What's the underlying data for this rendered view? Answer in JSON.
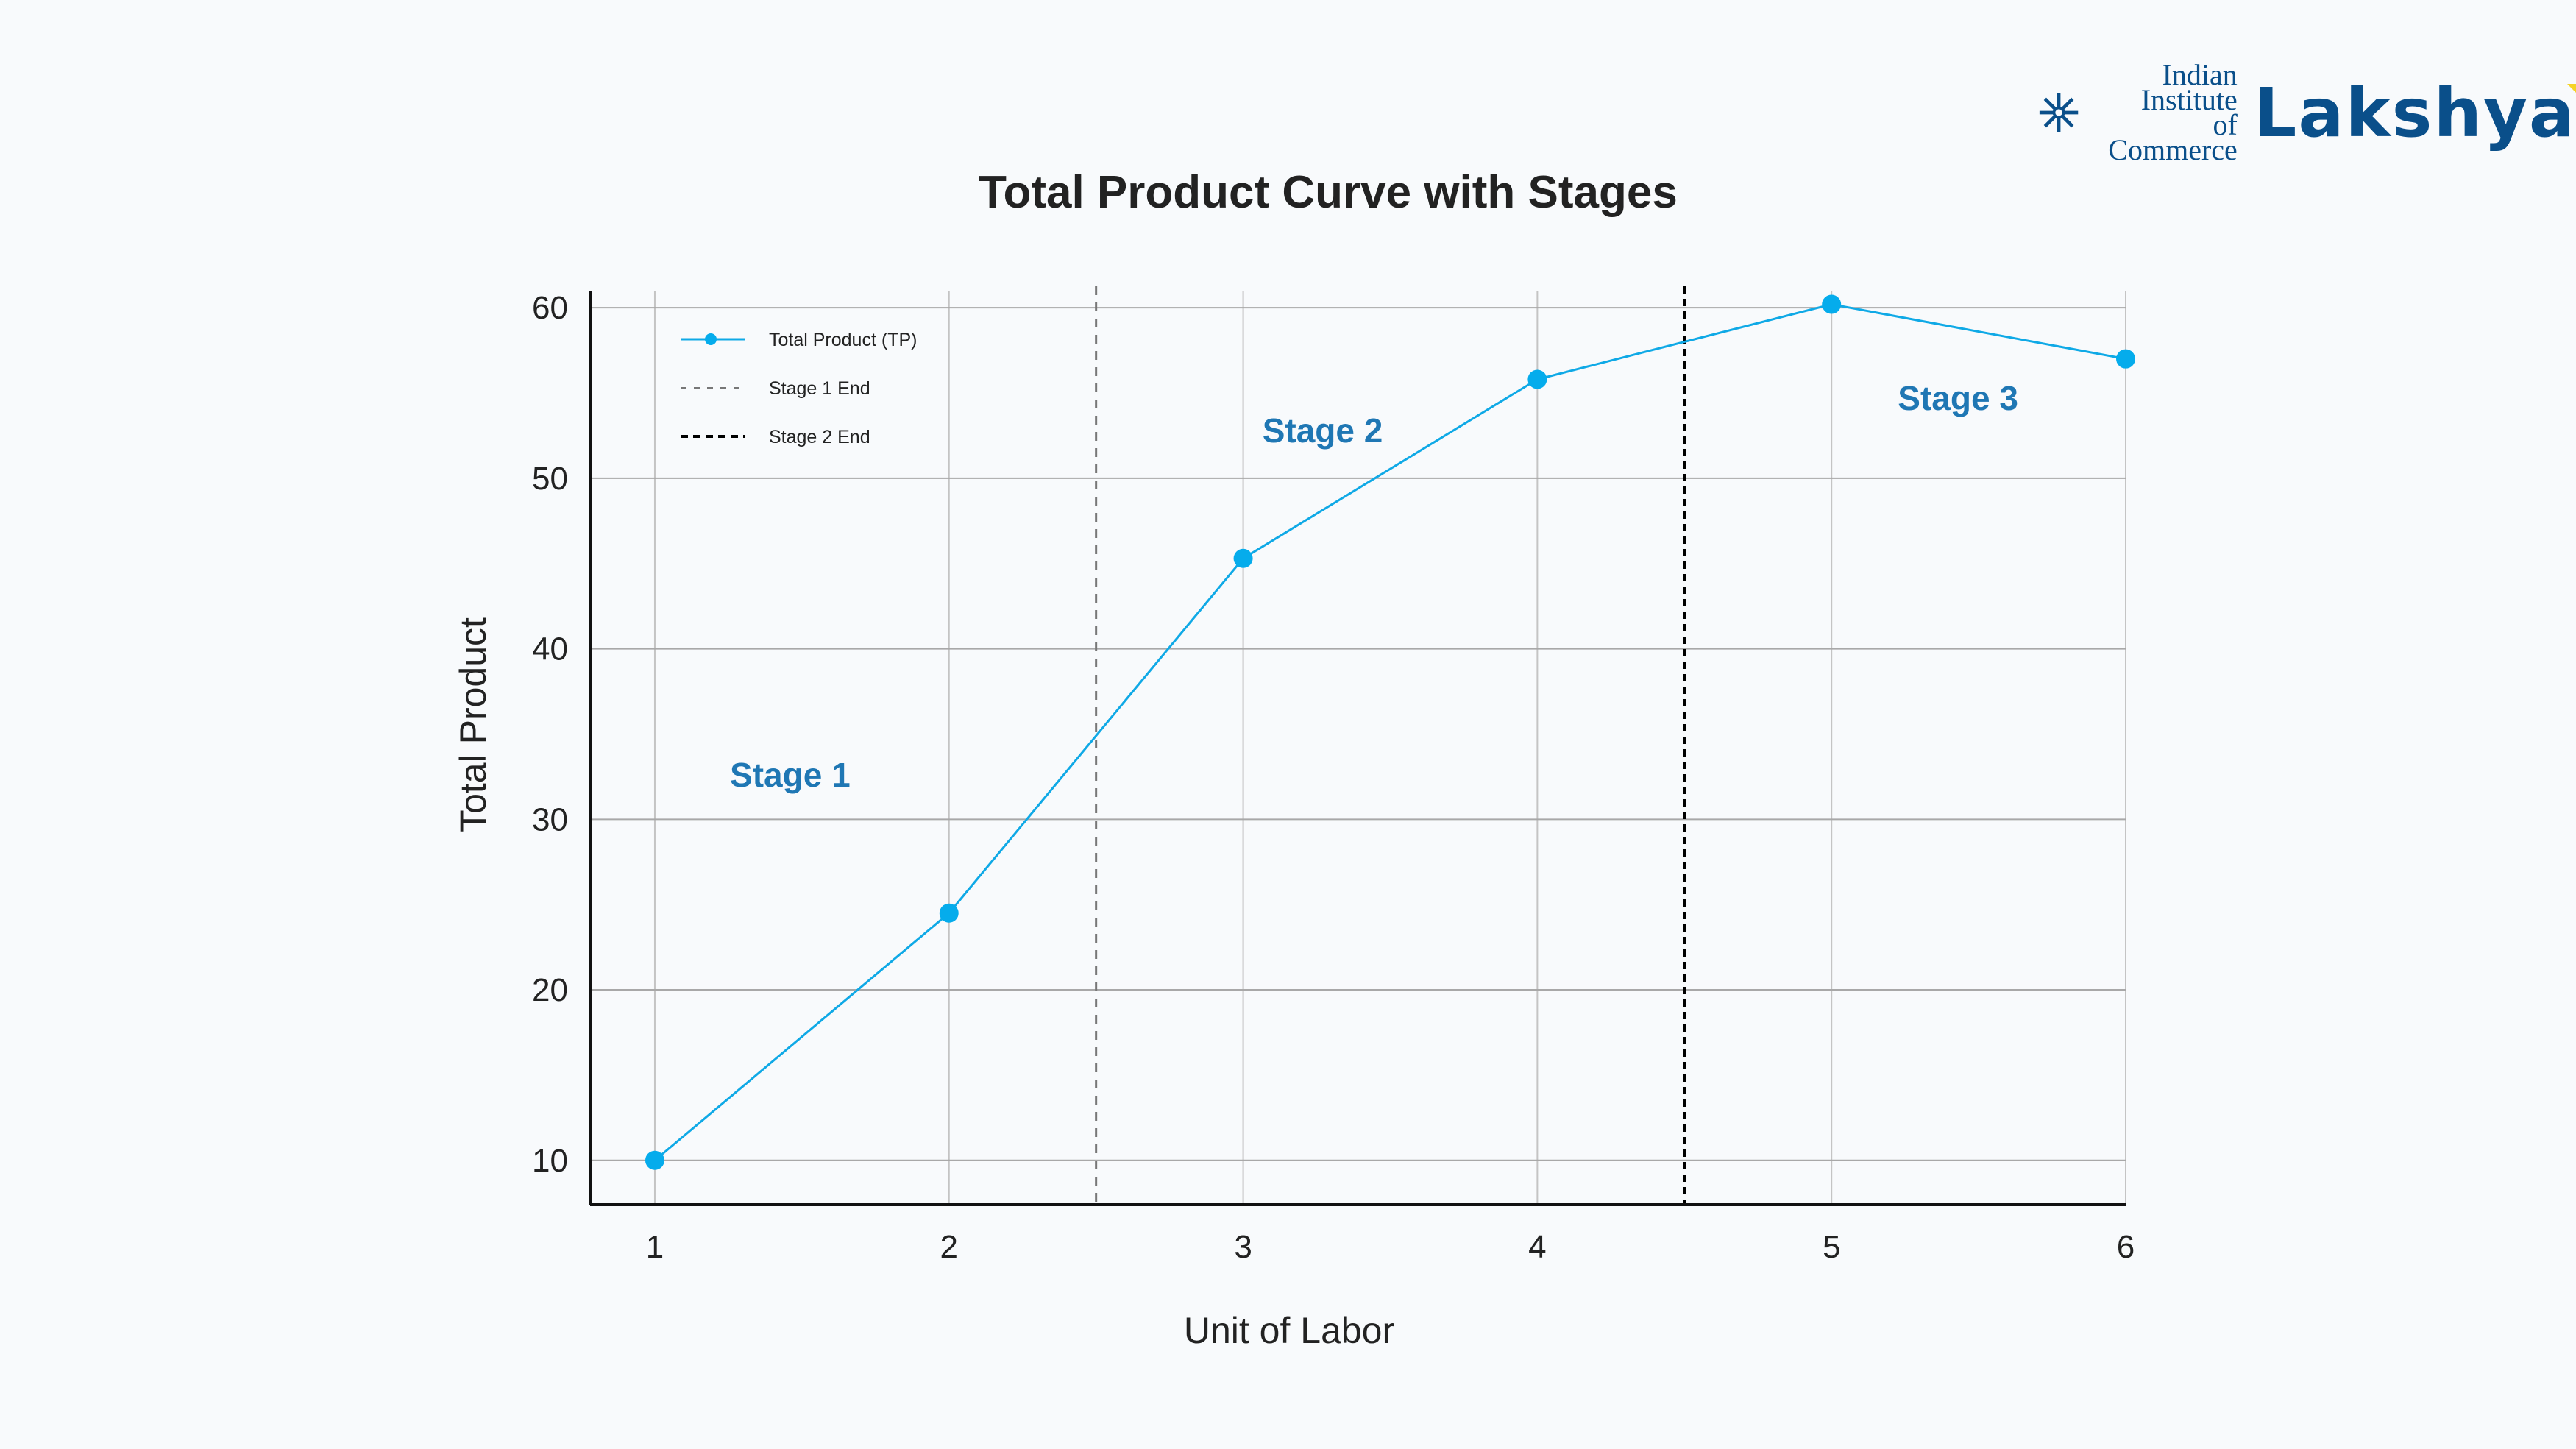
{
  "logo": {
    "line1": "Indian",
    "line2": "Institute",
    "line3": "of Commerce",
    "brand": "Lakshya",
    "icon": "snowflake-icon"
  },
  "chart_data": {
    "type": "line",
    "title": "Total Product Curve with Stages",
    "xlabel": "Unit of Labor",
    "ylabel": "Total Product",
    "x": [
      1,
      2,
      3,
      4,
      5,
      6
    ],
    "series": [
      {
        "name": "Total Product (TP)",
        "values": [
          10,
          24.5,
          45.3,
          55.8,
          60.2,
          57
        ],
        "color": "#0fa9e6"
      }
    ],
    "xlim": [
      0.78,
      6
    ],
    "ylim": [
      7.4,
      61
    ],
    "xticks": [
      "1",
      "2",
      "3",
      "4",
      "5",
      "6"
    ],
    "yticks": [
      "10",
      "20",
      "30",
      "40",
      "50",
      "60"
    ],
    "grid": true,
    "legend_position": "top-left",
    "vlines": [
      {
        "name": "Stage 1 End",
        "x": 2.5,
        "color": "#777777",
        "style": "dashed"
      },
      {
        "name": "Stage 2 End",
        "x": 4.5,
        "color": "#000000",
        "style": "dashed"
      }
    ],
    "annotations": [
      {
        "text": "Stage 1",
        "x": 1.46,
        "y": 32.6
      },
      {
        "text": "Stage 2",
        "x": 3.27,
        "y": 52.8
      },
      {
        "text": "Stage 3",
        "x": 5.43,
        "y": 54.7
      }
    ],
    "annotation_color": "#1f77b4"
  }
}
